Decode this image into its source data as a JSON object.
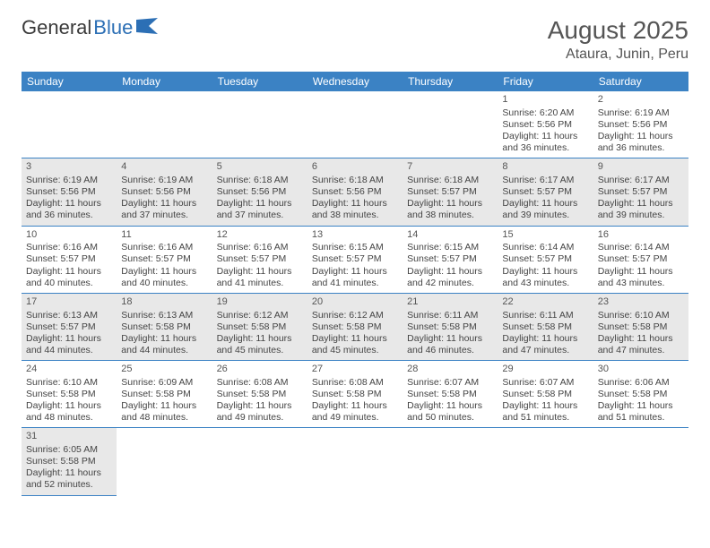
{
  "logo": {
    "word1": "General",
    "word2": "Blue"
  },
  "title": "August 2025",
  "location": "Ataura, Junin, Peru",
  "colors": {
    "header_bg": "#3b82c4",
    "header_text": "#ffffff",
    "shade_bg": "#e8e8e8",
    "text": "#444444",
    "border": "#3b82c4"
  },
  "day_headers": [
    "Sunday",
    "Monday",
    "Tuesday",
    "Wednesday",
    "Thursday",
    "Friday",
    "Saturday"
  ],
  "weeks": [
    [
      {
        "empty": true
      },
      {
        "empty": true
      },
      {
        "empty": true
      },
      {
        "empty": true
      },
      {
        "empty": true
      },
      {
        "day": "1",
        "sunrise": "Sunrise: 6:20 AM",
        "sunset": "Sunset: 5:56 PM",
        "daylight": "Daylight: 11 hours and 36 minutes."
      },
      {
        "day": "2",
        "sunrise": "Sunrise: 6:19 AM",
        "sunset": "Sunset: 5:56 PM",
        "daylight": "Daylight: 11 hours and 36 minutes."
      }
    ],
    [
      {
        "day": "3",
        "sunrise": "Sunrise: 6:19 AM",
        "sunset": "Sunset: 5:56 PM",
        "daylight": "Daylight: 11 hours and 36 minutes.",
        "shaded": true
      },
      {
        "day": "4",
        "sunrise": "Sunrise: 6:19 AM",
        "sunset": "Sunset: 5:56 PM",
        "daylight": "Daylight: 11 hours and 37 minutes.",
        "shaded": true
      },
      {
        "day": "5",
        "sunrise": "Sunrise: 6:18 AM",
        "sunset": "Sunset: 5:56 PM",
        "daylight": "Daylight: 11 hours and 37 minutes.",
        "shaded": true
      },
      {
        "day": "6",
        "sunrise": "Sunrise: 6:18 AM",
        "sunset": "Sunset: 5:56 PM",
        "daylight": "Daylight: 11 hours and 38 minutes.",
        "shaded": true
      },
      {
        "day": "7",
        "sunrise": "Sunrise: 6:18 AM",
        "sunset": "Sunset: 5:57 PM",
        "daylight": "Daylight: 11 hours and 38 minutes.",
        "shaded": true
      },
      {
        "day": "8",
        "sunrise": "Sunrise: 6:17 AM",
        "sunset": "Sunset: 5:57 PM",
        "daylight": "Daylight: 11 hours and 39 minutes.",
        "shaded": true
      },
      {
        "day": "9",
        "sunrise": "Sunrise: 6:17 AM",
        "sunset": "Sunset: 5:57 PM",
        "daylight": "Daylight: 11 hours and 39 minutes.",
        "shaded": true
      }
    ],
    [
      {
        "day": "10",
        "sunrise": "Sunrise: 6:16 AM",
        "sunset": "Sunset: 5:57 PM",
        "daylight": "Daylight: 11 hours and 40 minutes."
      },
      {
        "day": "11",
        "sunrise": "Sunrise: 6:16 AM",
        "sunset": "Sunset: 5:57 PM",
        "daylight": "Daylight: 11 hours and 40 minutes."
      },
      {
        "day": "12",
        "sunrise": "Sunrise: 6:16 AM",
        "sunset": "Sunset: 5:57 PM",
        "daylight": "Daylight: 11 hours and 41 minutes."
      },
      {
        "day": "13",
        "sunrise": "Sunrise: 6:15 AM",
        "sunset": "Sunset: 5:57 PM",
        "daylight": "Daylight: 11 hours and 41 minutes."
      },
      {
        "day": "14",
        "sunrise": "Sunrise: 6:15 AM",
        "sunset": "Sunset: 5:57 PM",
        "daylight": "Daylight: 11 hours and 42 minutes."
      },
      {
        "day": "15",
        "sunrise": "Sunrise: 6:14 AM",
        "sunset": "Sunset: 5:57 PM",
        "daylight": "Daylight: 11 hours and 43 minutes."
      },
      {
        "day": "16",
        "sunrise": "Sunrise: 6:14 AM",
        "sunset": "Sunset: 5:57 PM",
        "daylight": "Daylight: 11 hours and 43 minutes."
      }
    ],
    [
      {
        "day": "17",
        "sunrise": "Sunrise: 6:13 AM",
        "sunset": "Sunset: 5:57 PM",
        "daylight": "Daylight: 11 hours and 44 minutes.",
        "shaded": true
      },
      {
        "day": "18",
        "sunrise": "Sunrise: 6:13 AM",
        "sunset": "Sunset: 5:58 PM",
        "daylight": "Daylight: 11 hours and 44 minutes.",
        "shaded": true
      },
      {
        "day": "19",
        "sunrise": "Sunrise: 6:12 AM",
        "sunset": "Sunset: 5:58 PM",
        "daylight": "Daylight: 11 hours and 45 minutes.",
        "shaded": true
      },
      {
        "day": "20",
        "sunrise": "Sunrise: 6:12 AM",
        "sunset": "Sunset: 5:58 PM",
        "daylight": "Daylight: 11 hours and 45 minutes.",
        "shaded": true
      },
      {
        "day": "21",
        "sunrise": "Sunrise: 6:11 AM",
        "sunset": "Sunset: 5:58 PM",
        "daylight": "Daylight: 11 hours and 46 minutes.",
        "shaded": true
      },
      {
        "day": "22",
        "sunrise": "Sunrise: 6:11 AM",
        "sunset": "Sunset: 5:58 PM",
        "daylight": "Daylight: 11 hours and 47 minutes.",
        "shaded": true
      },
      {
        "day": "23",
        "sunrise": "Sunrise: 6:10 AM",
        "sunset": "Sunset: 5:58 PM",
        "daylight": "Daylight: 11 hours and 47 minutes.",
        "shaded": true
      }
    ],
    [
      {
        "day": "24",
        "sunrise": "Sunrise: 6:10 AM",
        "sunset": "Sunset: 5:58 PM",
        "daylight": "Daylight: 11 hours and 48 minutes."
      },
      {
        "day": "25",
        "sunrise": "Sunrise: 6:09 AM",
        "sunset": "Sunset: 5:58 PM",
        "daylight": "Daylight: 11 hours and 48 minutes."
      },
      {
        "day": "26",
        "sunrise": "Sunrise: 6:08 AM",
        "sunset": "Sunset: 5:58 PM",
        "daylight": "Daylight: 11 hours and 49 minutes."
      },
      {
        "day": "27",
        "sunrise": "Sunrise: 6:08 AM",
        "sunset": "Sunset: 5:58 PM",
        "daylight": "Daylight: 11 hours and 49 minutes."
      },
      {
        "day": "28",
        "sunrise": "Sunrise: 6:07 AM",
        "sunset": "Sunset: 5:58 PM",
        "daylight": "Daylight: 11 hours and 50 minutes."
      },
      {
        "day": "29",
        "sunrise": "Sunrise: 6:07 AM",
        "sunset": "Sunset: 5:58 PM",
        "daylight": "Daylight: 11 hours and 51 minutes."
      },
      {
        "day": "30",
        "sunrise": "Sunrise: 6:06 AM",
        "sunset": "Sunset: 5:58 PM",
        "daylight": "Daylight: 11 hours and 51 minutes."
      }
    ],
    [
      {
        "day": "31",
        "sunrise": "Sunrise: 6:05 AM",
        "sunset": "Sunset: 5:58 PM",
        "daylight": "Daylight: 11 hours and 52 minutes.",
        "shaded": true
      },
      {
        "empty": true
      },
      {
        "empty": true
      },
      {
        "empty": true
      },
      {
        "empty": true
      },
      {
        "empty": true
      },
      {
        "empty": true
      }
    ]
  ]
}
